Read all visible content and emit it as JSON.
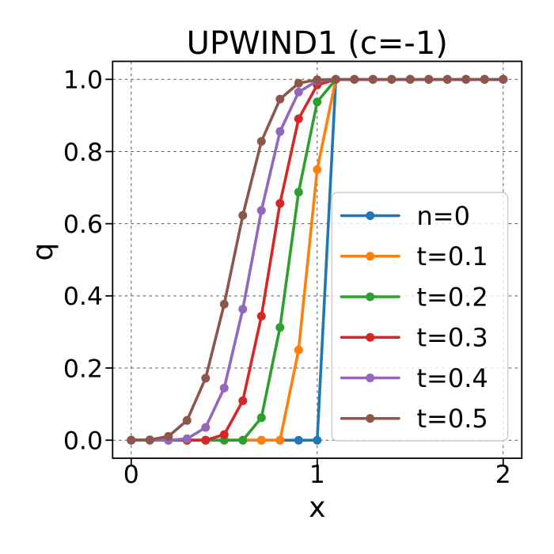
{
  "figure": {
    "background": "#ffffff"
  },
  "chart_data": {
    "type": "line",
    "title": "UPWIND1 (c=-1)",
    "xlabel": "x",
    "ylabel": "q",
    "xlim": [
      -0.1,
      2.1
    ],
    "ylim": [
      -0.05,
      1.05
    ],
    "xticks": {
      "values": [
        0,
        1,
        2
      ],
      "labels": [
        "0",
        "1",
        "2"
      ]
    },
    "yticks": {
      "values": [
        0.0,
        0.2,
        0.4,
        0.6,
        0.8,
        1.0
      ],
      "labels": [
        "0.0",
        "0.2",
        "0.4",
        "0.6",
        "0.8",
        "1.0"
      ]
    },
    "grid": {
      "visible": true,
      "style": "dashed",
      "color": "#555555"
    },
    "x": [
      0.0,
      0.1,
      0.2,
      0.3,
      0.4,
      0.5,
      0.6,
      0.7,
      0.8,
      0.9,
      1.0,
      1.1,
      1.2,
      1.3,
      1.4,
      1.5,
      1.6,
      1.7,
      1.8,
      1.9,
      2.0
    ],
    "series": [
      {
        "name": "n=0",
        "color": "#1f77b4",
        "marker": "circle",
        "values": [
          0,
          0,
          0,
          0,
          0,
          0,
          0,
          0,
          0,
          0,
          0,
          1,
          1,
          1,
          1,
          1,
          1,
          1,
          1,
          1,
          1
        ]
      },
      {
        "name": "t=0.1",
        "color": "#ff7f0e",
        "marker": "circle",
        "values": [
          0,
          0,
          0,
          0,
          0,
          0,
          0,
          0,
          0,
          0.25,
          0.75,
          1,
          1,
          1,
          1,
          1,
          1,
          1,
          1,
          1,
          1
        ]
      },
      {
        "name": "t=0.2",
        "color": "#2ca02c",
        "marker": "circle",
        "values": [
          0,
          0,
          0,
          0,
          0,
          0,
          0,
          0.0625,
          0.3125,
          0.6875,
          0.9375,
          1,
          1,
          1,
          1,
          1,
          1,
          1,
          1,
          1,
          1
        ]
      },
      {
        "name": "t=0.3",
        "color": "#d62728",
        "marker": "circle",
        "values": [
          0,
          0,
          0,
          0,
          0,
          0.0156,
          0.1094,
          0.3438,
          0.6563,
          0.8906,
          0.9844,
          1,
          1,
          1,
          1,
          1,
          1,
          1,
          1,
          1,
          1
        ]
      },
      {
        "name": "t=0.4",
        "color": "#9467bd",
        "marker": "circle",
        "values": [
          0,
          0,
          0,
          0.0039,
          0.0352,
          0.1445,
          0.3633,
          0.6367,
          0.8555,
          0.9648,
          0.9961,
          1,
          1,
          1,
          1,
          1,
          1,
          1,
          1,
          1,
          1
        ]
      },
      {
        "name": "t=0.5",
        "color": "#8c564b",
        "marker": "circle",
        "values": [
          0,
          0.001,
          0.0107,
          0.0547,
          0.1719,
          0.377,
          0.623,
          0.8281,
          0.9453,
          0.9893,
          0.999,
          1,
          1,
          1,
          1,
          1,
          1,
          1,
          1,
          1,
          1
        ]
      }
    ],
    "legend": {
      "visible": true,
      "location": "center right",
      "entries": [
        "n=0",
        "t=0.1",
        "t=0.2",
        "t=0.3",
        "t=0.4",
        "t=0.5"
      ],
      "frame_color": "#cccccc",
      "background": "rgba(255,255,255,0.8)"
    }
  }
}
